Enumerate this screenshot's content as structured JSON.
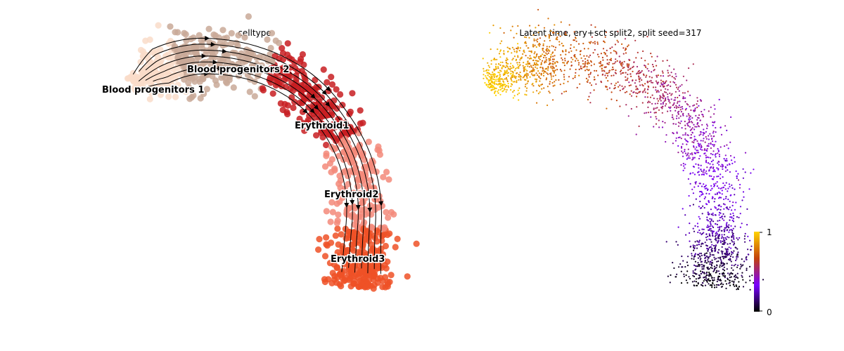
{
  "chart_data": [
    {
      "type": "scatter",
      "subtype": "embedding-with-velocity-stream",
      "title": "celltype",
      "axes_visible": false,
      "grid": false,
      "legend": "on data",
      "clusters": [
        {
          "name": "Blood progenitors 1",
          "color": "#f9dcc9"
        },
        {
          "name": "Blood progenitors 2",
          "color": "#c9a998"
        },
        {
          "name": "Erythroid1",
          "color": "#c81e22"
        },
        {
          "name": "Erythroid2",
          "color": "#f3897a"
        },
        {
          "name": "Erythroid3",
          "color": "#ef5127"
        }
      ],
      "stream_color": "#000000"
    },
    {
      "type": "scatter",
      "subtype": "embedding-continuous",
      "title": "Latent time, ery+sct split2, split seed=317",
      "axes_visible": false,
      "grid": false,
      "colormap": [
        "#000000",
        "#7a00ff",
        "#c2410c",
        "#ffd400"
      ],
      "colorbar": {
        "min": 0,
        "max": 1,
        "ticks": [
          "0",
          "1"
        ],
        "placement": "right"
      }
    }
  ]
}
